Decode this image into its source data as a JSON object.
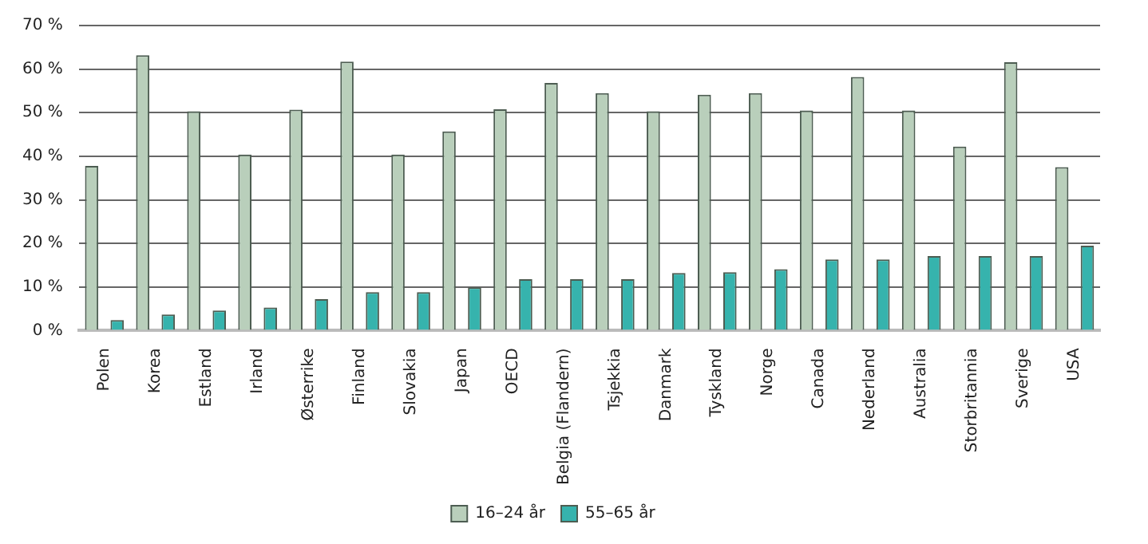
{
  "chart_data": {
    "type": "bar",
    "categories": [
      "Polen",
      "Korea",
      "Estland",
      "Irland",
      "Østerrike",
      "Finland",
      "Slovakia",
      "Japan",
      "OECD",
      "Belgia (Flandern)",
      "Tsjekkia",
      "Danmark",
      "Tyskland",
      "Norge",
      "Canada",
      "Nederland",
      "Australia",
      "Storbritannia",
      "Sverige",
      "USA"
    ],
    "series": [
      {
        "name": "16–24 år",
        "color": "#b9cfbb",
        "values": [
          37.8,
          63.2,
          50.3,
          40.4,
          50.7,
          61.7,
          40.4,
          45.7,
          50.8,
          56.8,
          54.5,
          50.3,
          54.1,
          54.5,
          50.5,
          58.2,
          50.5,
          42.2,
          61.6,
          37.5
        ]
      },
      {
        "name": "55–65 år",
        "color": "#36b3ad",
        "values": [
          2.4,
          3.7,
          4.6,
          5.3,
          7.2,
          8.8,
          8.8,
          9.9,
          11.8,
          11.8,
          11.8,
          13.2,
          13.4,
          14.1,
          16.3,
          16.3,
          17.1,
          17.1,
          17.1,
          19.5
        ]
      }
    ],
    "ylim": [
      0,
      70
    ],
    "yticks": [
      {
        "value": 0,
        "label": "0 %"
      },
      {
        "value": 10,
        "label": "10 %"
      },
      {
        "value": 20,
        "label": "20 %"
      },
      {
        "value": 30,
        "label": "30 %"
      },
      {
        "value": 40,
        "label": "40 %"
      },
      {
        "value": 50,
        "label": "50 %"
      },
      {
        "value": 60,
        "label": "60 %"
      },
      {
        "value": 70,
        "label": "70 %"
      }
    ],
    "grid": "y",
    "legend": "bottom"
  }
}
